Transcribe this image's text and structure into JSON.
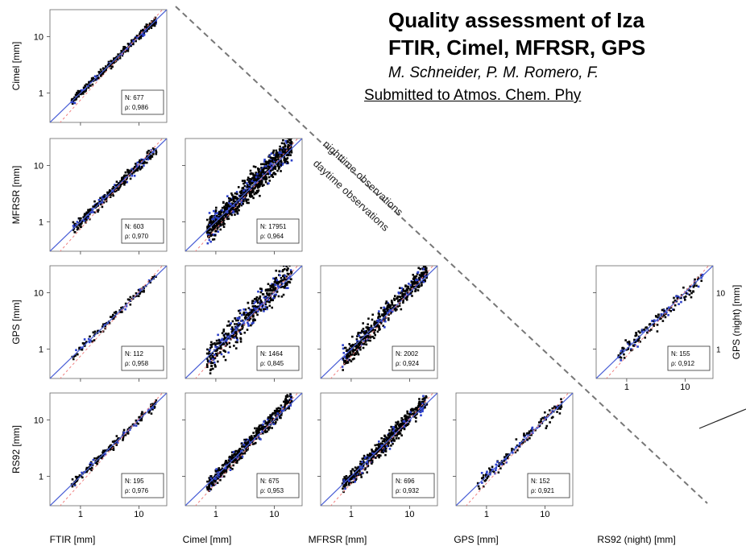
{
  "header": {
    "title_line1": "Quality assessment of Iza",
    "title_line2": "FTIR, Cimel, MFRSR, GPS",
    "authors": "M. Schneider, P. M. Romero, F.",
    "submitted": "Submitted to Atmos. Chem. Phy"
  },
  "diagonal_labels": {
    "upper": "nighttime observations",
    "lower": "daytime observations"
  },
  "colors": {
    "one_to_one": "#4a5fd6",
    "fit": "#f08080",
    "points": "#000000",
    "panel_blue": "#2b3fc9"
  },
  "chart_data": {
    "type": "scatter",
    "scale": "log",
    "xlim": [
      0.3,
      30
    ],
    "ylim": [
      0.3,
      30
    ],
    "tick_labels": [
      "1",
      "10"
    ],
    "x_axis_labels": [
      "FTIR [mm]",
      "Cimel [mm]",
      "MFRSR [mm]",
      "GPS [mm]",
      "RS92 (night) [mm]"
    ],
    "y_axis_labels": [
      "Cimel [mm]",
      "MFRSR [mm]",
      "GPS [mm]",
      "RS92 [mm]"
    ],
    "right_axis_label": "GPS (night) [mm]",
    "panels": [
      {
        "x": "FTIR [mm]",
        "y": "Cimel [mm]",
        "n_label": "N: 677",
        "rho_label": "ρ: 0,986"
      },
      {
        "x": "FTIR [mm]",
        "y": "MFRSR [mm]",
        "n_label": "N: 603",
        "rho_label": "ρ: 0,970"
      },
      {
        "x": "Cimel [mm]",
        "y": "MFRSR [mm]",
        "n_label": "N: 17951",
        "rho_label": "ρ: 0,964"
      },
      {
        "x": "FTIR [mm]",
        "y": "GPS [mm]",
        "n_label": "N: 112",
        "rho_label": "ρ: 0,958"
      },
      {
        "x": "Cimel [mm]",
        "y": "GPS [mm]",
        "n_label": "N: 1464",
        "rho_label": "ρ: 0,845"
      },
      {
        "x": "MFRSR [mm]",
        "y": "GPS [mm]",
        "n_label": "N: 2002",
        "rho_label": "ρ: 0,924"
      },
      {
        "x": "RS92 (night) [mm]",
        "y": "GPS (night) [mm]",
        "n_label": "N: 155",
        "rho_label": "ρ: 0,912"
      },
      {
        "x": "FTIR [mm]",
        "y": "RS92 [mm]",
        "n_label": "N: 195",
        "rho_label": "ρ: 0,976"
      },
      {
        "x": "Cimel [mm]",
        "y": "RS92 [mm]",
        "n_label": "N: 675",
        "rho_label": "ρ: 0,953"
      },
      {
        "x": "MFRSR [mm]",
        "y": "RS92 [mm]",
        "n_label": "N: 696",
        "rho_label": "ρ: 0,932"
      },
      {
        "x": "GPS [mm]",
        "y": "RS92 [mm]",
        "n_label": "N: 152",
        "rho_label": "ρ: 0,921"
      }
    ]
  }
}
